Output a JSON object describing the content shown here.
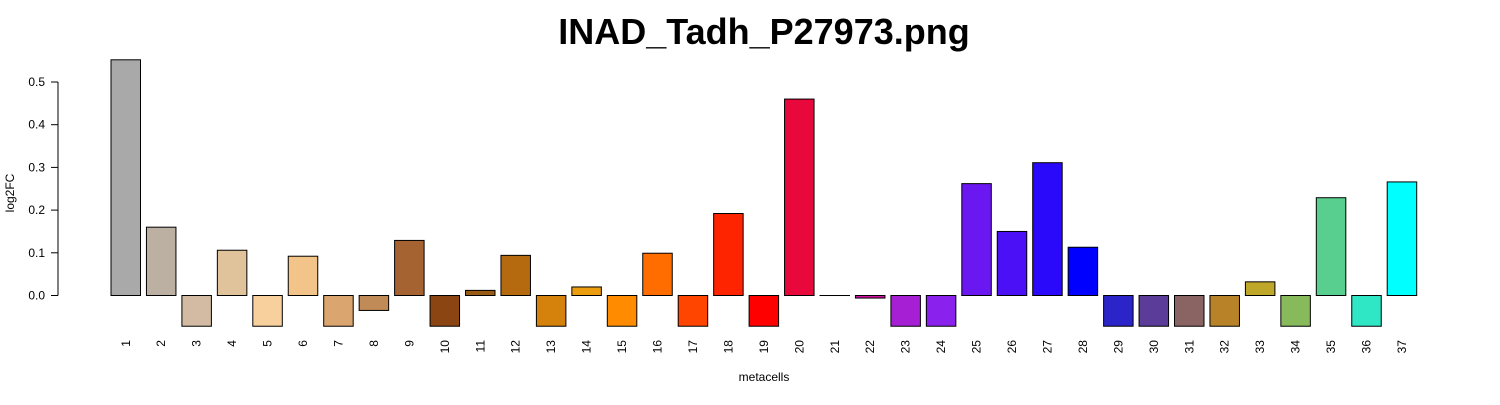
{
  "chart_data": {
    "type": "bar",
    "title": "INAD_Tadh_P27973.png",
    "xlabel": "metacells",
    "ylabel": "log2FC",
    "ylim": [
      -0.072,
      0.55
    ],
    "yticks": [
      "0.0",
      "0.1",
      "0.2",
      "0.3",
      "0.4",
      "0.5"
    ],
    "ytick_values": [
      0.0,
      0.1,
      0.2,
      0.3,
      0.4,
      0.5
    ],
    "grid": false,
    "legend": "none",
    "categories": [
      "1",
      "2",
      "3",
      "4",
      "5",
      "6",
      "7",
      "8",
      "9",
      "10",
      "11",
      "12",
      "13",
      "14",
      "15",
      "16",
      "17",
      "18",
      "19",
      "20",
      "21",
      "22",
      "23",
      "24",
      "25",
      "26",
      "27",
      "28",
      "29",
      "30",
      "31",
      "32",
      "33",
      "34",
      "35",
      "36",
      "37"
    ],
    "values": [
      0.552,
      0.16,
      -0.072,
      0.106,
      -0.072,
      0.092,
      -0.072,
      -0.035,
      0.129,
      -0.072,
      0.012,
      0.094,
      -0.072,
      0.02,
      -0.072,
      0.099,
      -0.072,
      0.192,
      -0.072,
      0.46,
      0.0,
      -0.006,
      -0.072,
      -0.072,
      0.262,
      0.15,
      0.311,
      0.113,
      -0.072,
      -0.072,
      -0.072,
      -0.072,
      0.032,
      -0.072,
      0.229,
      -0.072,
      0.266
    ],
    "colors": [
      "#a9a9a9",
      "#bcb0a2",
      "#d2bba2",
      "#e0c39b",
      "#f7d09e",
      "#f2c48a",
      "#daa56f",
      "#c08b56",
      "#a46330",
      "#8b4513",
      "#995b13",
      "#b56a10",
      "#d4820c",
      "#ec9d0f",
      "#ff8c00",
      "#ff6d00",
      "#ff4500",
      "#ff2400",
      "#ff0000",
      "#e8083b",
      "#bf0060",
      "#d112a0",
      "#a61fd5",
      "#8b21ed",
      "#6a17f2",
      "#4b10f6",
      "#2a08f9",
      "#0000ff",
      "#2b24c9",
      "#5b3c98",
      "#8a6363",
      "#b88328",
      "#bfa72a",
      "#86ba5a",
      "#59cf8f",
      "#2fe6c5",
      "#00ffff"
    ]
  }
}
